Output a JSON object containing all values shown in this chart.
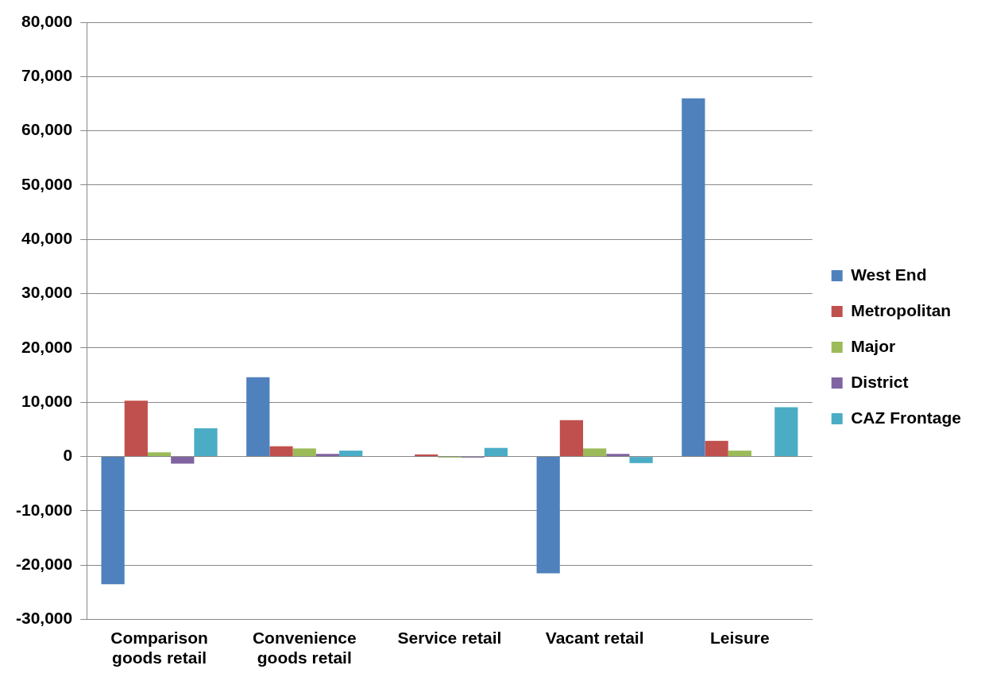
{
  "chart_data": {
    "type": "bar",
    "categories": [
      "Comparison goods retail",
      "Convenience goods retail",
      "Service retail",
      "Vacant retail",
      "Leisure"
    ],
    "series": [
      {
        "name": "West End",
        "color": "#4f81bd",
        "values": [
          -23500,
          14600,
          0,
          -21500,
          66000
        ]
      },
      {
        "name": "Metropolitan",
        "color": "#c0504d",
        "values": [
          10300,
          1900,
          400,
          6700,
          2900
        ]
      },
      {
        "name": "Major",
        "color": "#9bbb59",
        "values": [
          800,
          1500,
          -200,
          1500,
          1100
        ]
      },
      {
        "name": "District",
        "color": "#8064a2",
        "values": [
          -1300,
          500,
          -200,
          500,
          0
        ]
      },
      {
        "name": "CAZ Frontage",
        "color": "#4bacc6",
        "values": [
          5200,
          1100,
          1600,
          -1200,
          9100
        ]
      }
    ],
    "ylim": [
      -30000,
      80000
    ],
    "yticks": [
      {
        "value": -30000,
        "label": "-30,000"
      },
      {
        "value": -20000,
        "label": "-20,000"
      },
      {
        "value": -10000,
        "label": "-10,000"
      },
      0,
      {
        "value": 10000,
        "label": "10,000"
      },
      {
        "value": 20000,
        "label": "20,000"
      },
      {
        "value": 30000,
        "label": "30,000"
      },
      {
        "value": 40000,
        "label": "40,000"
      },
      {
        "value": 50000,
        "label": "50,000"
      },
      {
        "value": 60000,
        "label": "60,000"
      },
      {
        "value": 70000,
        "label": "70,000"
      },
      {
        "value": 80000,
        "label": "80,000"
      }
    ],
    "grid": "y",
    "legend": "right"
  }
}
